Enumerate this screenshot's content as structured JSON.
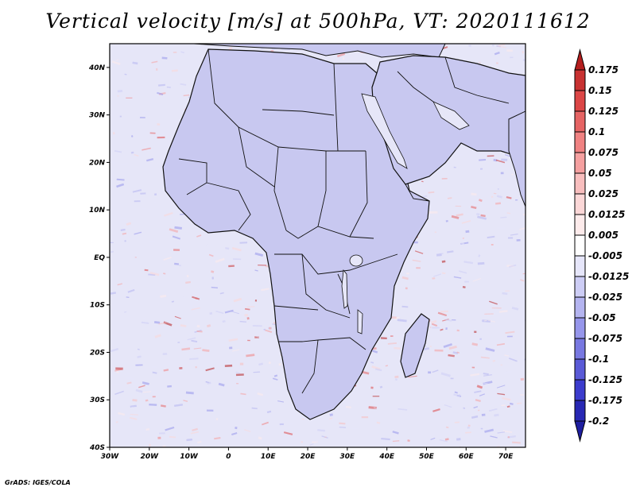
{
  "title": "Vertical velocity [m/s] at 500hPa, VT: 2020111612",
  "credit": "GrADS: IGES/COLA",
  "colors": {
    "frame": "#000000",
    "land": "#c8c8f0",
    "ocean": "#e6e6f8",
    "border": "#111111"
  },
  "map": {
    "lon_range": [
      -30,
      75
    ],
    "lat_range": [
      -40,
      45
    ],
    "x_ticks": [
      {
        "lon": -30,
        "label": "30W"
      },
      {
        "lon": -20,
        "label": "20W"
      },
      {
        "lon": -10,
        "label": "10W"
      },
      {
        "lon": 0,
        "label": "0"
      },
      {
        "lon": 10,
        "label": "10E"
      },
      {
        "lon": 20,
        "label": "20E"
      },
      {
        "lon": 30,
        "label": "30E"
      },
      {
        "lon": 40,
        "label": "40E"
      },
      {
        "lon": 50,
        "label": "50E"
      },
      {
        "lon": 60,
        "label": "60E"
      },
      {
        "lon": 70,
        "label": "70E"
      }
    ],
    "y_ticks": [
      {
        "lat": 40,
        "label": "40N"
      },
      {
        "lat": 30,
        "label": "30N"
      },
      {
        "lat": 20,
        "label": "20N"
      },
      {
        "lat": 10,
        "label": "10N"
      },
      {
        "lat": 0,
        "label": "EQ"
      },
      {
        "lat": -10,
        "label": "10S"
      },
      {
        "lat": -20,
        "label": "20S"
      },
      {
        "lat": -30,
        "label": "30S"
      },
      {
        "lat": -40,
        "label": "40S"
      }
    ]
  },
  "colorbar": {
    "levels": [
      {
        "label": "0.175",
        "color": "#b41e1e"
      },
      {
        "label": "0.15",
        "color": "#c83232"
      },
      {
        "label": "0.125",
        "color": "#dc4646"
      },
      {
        "label": "0.1",
        "color": "#e66464"
      },
      {
        "label": "0.075",
        "color": "#f08282"
      },
      {
        "label": "0.05",
        "color": "#f5a0a0"
      },
      {
        "label": "0.025",
        "color": "#f8bebe"
      },
      {
        "label": "0.0125",
        "color": "#fbd7d7"
      },
      {
        "label": "0.005",
        "color": "#fdebeb"
      },
      {
        "label": "-0.005",
        "color": "#ffffff"
      },
      {
        "label": "-0.0125",
        "color": "#e6e6fa"
      },
      {
        "label": "-0.025",
        "color": "#cdcdf5"
      },
      {
        "label": "-0.05",
        "color": "#b4b4f0"
      },
      {
        "label": "-0.075",
        "color": "#9696eb"
      },
      {
        "label": "-0.1",
        "color": "#7878e1"
      },
      {
        "label": "-0.125",
        "color": "#5a5ad7"
      },
      {
        "label": "-0.175",
        "color": "#3c3ccd"
      },
      {
        "label": "-0.2",
        "color": "#2828b4"
      }
    ],
    "bottom_color": "#1e1ea0"
  }
}
